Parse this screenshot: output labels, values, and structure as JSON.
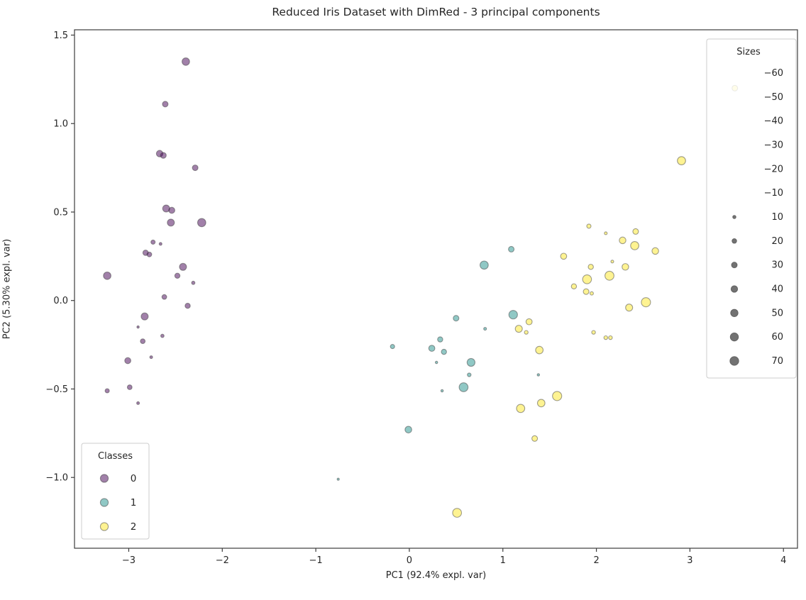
{
  "chart_data": {
    "type": "scatter",
    "title": "Reduced Iris Dataset with DimRed - 3 principal components",
    "xlabel": "PC1 (92.4% expl. var)",
    "ylabel": "PC2 (5.30% expl. var)",
    "xlim": [
      -3.58,
      4.15
    ],
    "ylim": [
      -1.4,
      1.53
    ],
    "xticks": [
      -3,
      -2,
      -1,
      0,
      1,
      2,
      3,
      4
    ],
    "yticks": [
      -1.0,
      -0.5,
      0.0,
      0.5,
      1.0,
      1.5
    ],
    "grid": false,
    "marker_alpha": 0.5,
    "edge_color": "#3f3f3f",
    "classes": [
      {
        "label": "0",
        "color": "#440154"
      },
      {
        "label": "1",
        "color": "#21918c"
      },
      {
        "label": "2",
        "color": "#fde725"
      }
    ],
    "class_legend": {
      "title": "Classes",
      "labels": [
        "0",
        "1",
        "2"
      ],
      "position": "lower left"
    },
    "size_legend": {
      "title": "Sizes",
      "values": [
        -60,
        -50,
        -40,
        -30,
        -20,
        -10,
        10,
        20,
        30,
        40,
        50,
        60,
        70
      ],
      "position": "upper right",
      "marker_color": "#4a4a4a"
    },
    "point_format": [
      "x",
      "y",
      "class",
      "size"
    ],
    "points": [
      [
        -2.39,
        1.35,
        0,
        50
      ],
      [
        -2.61,
        1.11,
        0,
        28
      ],
      [
        -2.67,
        0.83,
        0,
        38
      ],
      [
        -2.63,
        0.82,
        0,
        30
      ],
      [
        -2.29,
        0.75,
        0,
        28
      ],
      [
        -2.6,
        0.52,
        0,
        44
      ],
      [
        -2.54,
        0.51,
        0,
        33
      ],
      [
        -2.55,
        0.44,
        0,
        44
      ],
      [
        -2.22,
        0.44,
        0,
        60
      ],
      [
        -2.74,
        0.33,
        0,
        16
      ],
      [
        -2.66,
        0.32,
        0,
        7
      ],
      [
        -2.82,
        0.27,
        0,
        26
      ],
      [
        -2.78,
        0.26,
        0,
        20
      ],
      [
        -2.42,
        0.19,
        0,
        44
      ],
      [
        -3.23,
        0.14,
        0,
        50
      ],
      [
        -2.48,
        0.14,
        0,
        24
      ],
      [
        -2.31,
        0.1,
        0,
        10
      ],
      [
        -2.62,
        0.02,
        0,
        20
      ],
      [
        -2.37,
        -0.03,
        0,
        24
      ],
      [
        -2.83,
        -0.09,
        0,
        44
      ],
      [
        -2.9,
        -0.15,
        0,
        5
      ],
      [
        -2.64,
        -0.2,
        0,
        10
      ],
      [
        -2.85,
        -0.23,
        0,
        20
      ],
      [
        -2.76,
        -0.32,
        0,
        7
      ],
      [
        -3.01,
        -0.34,
        0,
        33
      ],
      [
        -2.99,
        -0.49,
        0,
        20
      ],
      [
        -3.23,
        -0.51,
        0,
        16
      ],
      [
        -2.9,
        -0.58,
        0,
        7
      ],
      [
        1.09,
        0.29,
        1,
        28
      ],
      [
        0.8,
        0.2,
        1,
        60
      ],
      [
        0.5,
        -0.1,
        1,
        28
      ],
      [
        1.11,
        -0.08,
        1,
        65
      ],
      [
        0.81,
        -0.16,
        1,
        7
      ],
      [
        0.33,
        -0.22,
        1,
        24
      ],
      [
        -0.18,
        -0.26,
        1,
        16
      ],
      [
        0.24,
        -0.27,
        1,
        33
      ],
      [
        0.37,
        -0.29,
        1,
        24
      ],
      [
        0.29,
        -0.35,
        1,
        5
      ],
      [
        0.66,
        -0.35,
        1,
        55
      ],
      [
        0.64,
        -0.42,
        1,
        12
      ],
      [
        1.38,
        -0.42,
        1,
        5
      ],
      [
        0.58,
        -0.49,
        1,
        70
      ],
      [
        0.35,
        -0.51,
        1,
        5
      ],
      [
        -0.01,
        -0.73,
        1,
        40
      ],
      [
        -0.76,
        -1.01,
        1,
        4
      ],
      [
        2.91,
        0.79,
        2,
        60
      ],
      [
        3.48,
        1.2,
        2,
        28
      ],
      [
        1.92,
        0.42,
        2,
        16
      ],
      [
        2.1,
        0.38,
        2,
        7
      ],
      [
        2.42,
        0.39,
        2,
        28
      ],
      [
        2.28,
        0.34,
        2,
        39
      ],
      [
        2.41,
        0.31,
        2,
        60
      ],
      [
        2.63,
        0.28,
        2,
        39
      ],
      [
        1.65,
        0.25,
        2,
        33
      ],
      [
        1.94,
        0.19,
        2,
        24
      ],
      [
        2.17,
        0.22,
        2,
        7
      ],
      [
        2.31,
        0.19,
        2,
        39
      ],
      [
        1.9,
        0.12,
        2,
        70
      ],
      [
        2.14,
        0.14,
        2,
        72
      ],
      [
        1.76,
        0.08,
        2,
        24
      ],
      [
        1.89,
        0.05,
        2,
        28
      ],
      [
        1.95,
        0.04,
        2,
        10
      ],
      [
        2.53,
        -0.01,
        2,
        75
      ],
      [
        2.35,
        -0.04,
        2,
        44
      ],
      [
        1.97,
        -0.18,
        2,
        12
      ],
      [
        2.1,
        -0.21,
        2,
        12
      ],
      [
        2.15,
        -0.21,
        2,
        12
      ],
      [
        1.28,
        -0.12,
        2,
        33
      ],
      [
        1.17,
        -0.16,
        2,
        44
      ],
      [
        1.25,
        -0.18,
        2,
        12
      ],
      [
        1.39,
        -0.28,
        2,
        50
      ],
      [
        1.19,
        -0.61,
        2,
        60
      ],
      [
        1.41,
        -0.58,
        2,
        50
      ],
      [
        1.58,
        -0.54,
        2,
        75
      ],
      [
        1.34,
        -0.78,
        2,
        28
      ],
      [
        0.51,
        -1.2,
        2,
        70
      ]
    ]
  }
}
